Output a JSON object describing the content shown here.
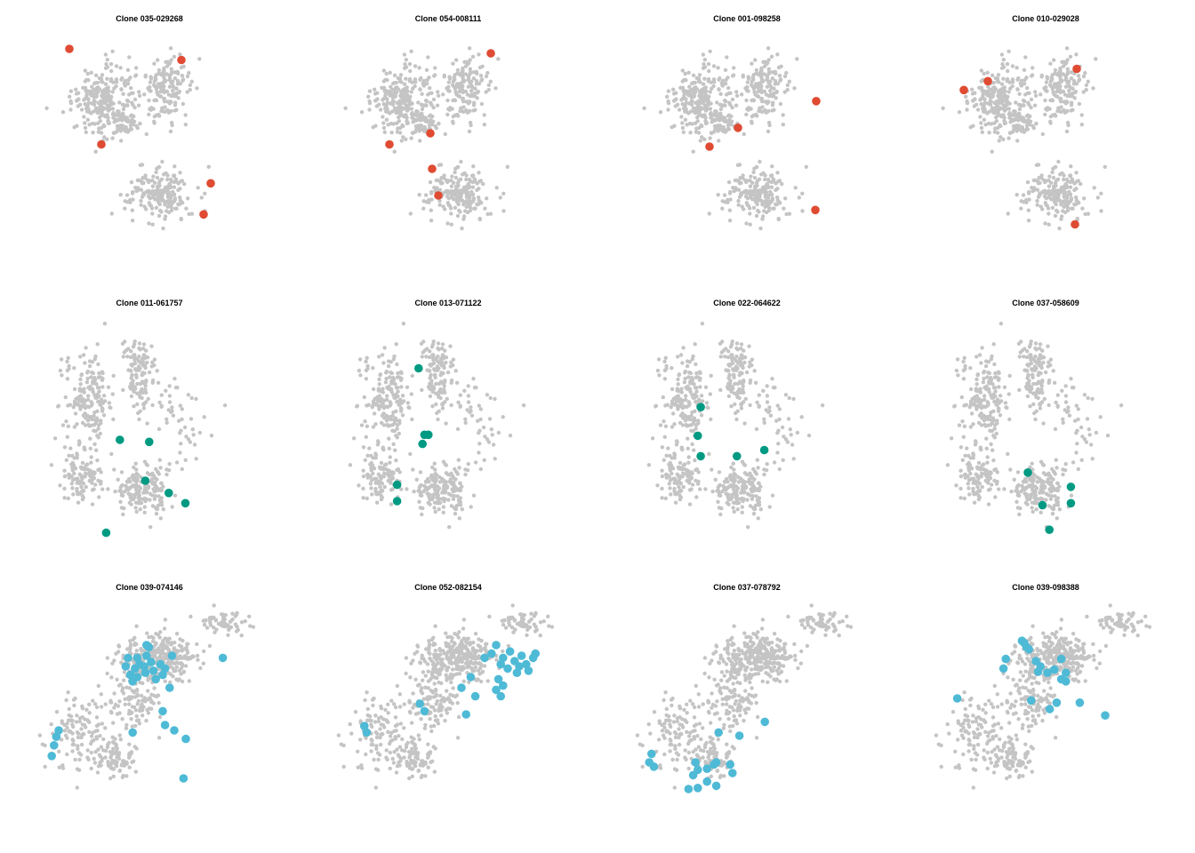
{
  "colors": {
    "background_points": "#c4c4c4",
    "red": "#e04b33",
    "green": "#009a82",
    "blue": "#4ebad6"
  },
  "chart_data": [
    {
      "type": "scatter",
      "title": "Clone 035-029268",
      "color": "#e04b33",
      "highlight": [
        [
          -0.82,
          -0.88
        ],
        [
          0.44,
          -0.78
        ],
        [
          -0.46,
          -0.02
        ],
        [
          0.77,
          0.33
        ],
        [
          0.69,
          0.61
        ]
      ]
    },
    {
      "type": "scatter",
      "title": "Clone 054-008111",
      "color": "#e04b33",
      "highlight": [
        [
          0.56,
          -0.84
        ],
        [
          -0.12,
          -0.12
        ],
        [
          -0.58,
          -0.02
        ],
        [
          -0.1,
          0.2
        ],
        [
          -0.03,
          0.44
        ]
      ]
    },
    {
      "type": "scatter",
      "title": "Clone 001-098258",
      "color": "#e04b33",
      "highlight": [
        [
          0.86,
          -0.41
        ],
        [
          -0.02,
          -0.17
        ],
        [
          -0.34,
          0.0
        ],
        [
          0.85,
          0.57
        ]
      ]
    },
    {
      "type": "scatter",
      "title": "Clone 010-029028",
      "color": "#e04b33",
      "highlight": [
        [
          -0.84,
          -0.51
        ],
        [
          -0.57,
          -0.59
        ],
        [
          0.43,
          -0.7
        ],
        [
          0.41,
          0.7
        ]
      ]
    },
    {
      "type": "scatter",
      "title": "Clone 011-061757",
      "color": "#009a82",
      "highlight": [
        [
          -0.32,
          0.0
        ],
        [
          -0.02,
          0.02
        ],
        [
          -0.06,
          0.4
        ],
        [
          0.18,
          0.52
        ],
        [
          0.35,
          0.62
        ],
        [
          -0.46,
          0.91
        ]
      ]
    },
    {
      "type": "scatter",
      "title": "Clone 013-071122",
      "color": "#009a82",
      "highlight": [
        [
          -0.32,
          -0.7
        ],
        [
          -0.26,
          -0.05
        ],
        [
          -0.22,
          -0.05
        ],
        [
          -0.28,
          0.04
        ],
        [
          -0.54,
          0.44
        ],
        [
          -0.54,
          0.6
        ]
      ]
    },
    {
      "type": "scatter",
      "title": "Clone 022-064622",
      "color": "#009a82",
      "highlight": [
        [
          -0.49,
          -0.32
        ],
        [
          -0.52,
          -0.04
        ],
        [
          -0.49,
          0.16
        ],
        [
          -0.12,
          0.16
        ],
        [
          0.16,
          0.1
        ]
      ]
    },
    {
      "type": "scatter",
      "title": "Clone 037-058609",
      "color": "#009a82",
      "highlight": [
        [
          -0.2,
          0.32
        ],
        [
          0.24,
          0.46
        ],
        [
          0.24,
          0.62
        ],
        [
          -0.05,
          0.64
        ],
        [
          0.02,
          0.88
        ]
      ]
    },
    {
      "type": "scatter",
      "title": "Clone 039-074146",
      "color": "#4ebad6",
      "highlight": [
        [
          -0.04,
          -0.7
        ],
        [
          -0.02,
          -0.68
        ],
        [
          -0.04,
          -0.6
        ],
        [
          -0.12,
          -0.58
        ],
        [
          -0.1,
          -0.52
        ],
        [
          -0.06,
          -0.5
        ],
        [
          0.0,
          -0.54
        ],
        [
          -0.14,
          -0.48
        ],
        [
          -0.18,
          -0.42
        ],
        [
          -0.12,
          -0.4
        ],
        [
          -0.05,
          -0.44
        ],
        [
          0.02,
          -0.46
        ],
        [
          0.08,
          -0.52
        ],
        [
          0.12,
          -0.48
        ],
        [
          0.1,
          -0.42
        ],
        [
          0.04,
          -0.38
        ],
        [
          -0.16,
          -0.36
        ],
        [
          -0.22,
          -0.5
        ],
        [
          -0.2,
          -0.58
        ],
        [
          0.18,
          -0.6
        ],
        [
          0.62,
          -0.58
        ],
        [
          0.16,
          -0.3
        ],
        [
          0.1,
          -0.08
        ],
        [
          0.12,
          0.05
        ],
        [
          0.2,
          0.1
        ],
        [
          0.3,
          0.18
        ],
        [
          -0.16,
          0.12
        ],
        [
          -0.82,
          0.16
        ],
        [
          -0.84,
          0.24
        ],
        [
          -0.86,
          0.34
        ],
        [
          -0.8,
          0.1
        ],
        [
          0.28,
          0.55
        ]
      ]
    },
    {
      "type": "scatter",
      "title": "Clone 052-082154",
      "color": "#4ebad6",
      "highlight": [
        [
          0.4,
          -0.7
        ],
        [
          0.52,
          -0.64
        ],
        [
          0.46,
          -0.58
        ],
        [
          0.56,
          -0.55
        ],
        [
          0.6,
          -0.5
        ],
        [
          0.66,
          -0.52
        ],
        [
          0.72,
          -0.58
        ],
        [
          0.74,
          -0.62
        ],
        [
          0.68,
          -0.46
        ],
        [
          0.58,
          -0.44
        ],
        [
          0.5,
          -0.48
        ],
        [
          0.44,
          -0.52
        ],
        [
          0.62,
          -0.6
        ],
        [
          0.36,
          -0.62
        ],
        [
          0.3,
          -0.58
        ],
        [
          0.42,
          -0.38
        ],
        [
          0.46,
          -0.32
        ],
        [
          0.4,
          -0.28
        ],
        [
          0.44,
          -0.22
        ],
        [
          0.18,
          -0.4
        ],
        [
          0.1,
          -0.3
        ],
        [
          0.22,
          -0.22
        ],
        [
          -0.26,
          -0.15
        ],
        [
          -0.22,
          -0.08
        ],
        [
          -0.74,
          0.06
        ],
        [
          -0.72,
          0.12
        ],
        [
          0.14,
          -0.05
        ]
      ]
    },
    {
      "type": "scatter",
      "title": "Clone 037-078792",
      "color": "#4ebad6",
      "highlight": [
        [
          0.14,
          0.02
        ],
        [
          -0.26,
          0.12
        ],
        [
          -0.08,
          0.15
        ],
        [
          -0.84,
          0.32
        ],
        [
          -0.86,
          0.4
        ],
        [
          -0.82,
          0.44
        ],
        [
          -0.46,
          0.4
        ],
        [
          -0.28,
          0.4
        ],
        [
          -0.3,
          0.42
        ],
        [
          -0.44,
          0.47
        ],
        [
          -0.48,
          0.52
        ],
        [
          -0.36,
          0.46
        ],
        [
          -0.16,
          0.42
        ],
        [
          -0.14,
          0.5
        ],
        [
          -0.36,
          0.58
        ],
        [
          -0.44,
          0.64
        ],
        [
          -0.28,
          0.62
        ],
        [
          -0.52,
          0.65
        ]
      ]
    },
    {
      "type": "scatter",
      "title": "Clone 039-098388",
      "color": "#4ebad6",
      "highlight": [
        [
          -0.22,
          -0.74
        ],
        [
          -0.2,
          -0.72
        ],
        [
          -0.18,
          -0.68
        ],
        [
          -0.16,
          -0.66
        ],
        [
          -0.36,
          -0.57
        ],
        [
          -0.1,
          -0.55
        ],
        [
          0.12,
          -0.57
        ],
        [
          -0.38,
          -0.48
        ],
        [
          -0.08,
          -0.45
        ],
        [
          0.0,
          -0.44
        ],
        [
          0.16,
          -0.44
        ],
        [
          0.06,
          -0.47
        ],
        [
          -0.06,
          -0.5
        ],
        [
          0.12,
          -0.38
        ],
        [
          0.16,
          -0.36
        ],
        [
          -0.78,
          -0.2
        ],
        [
          -0.14,
          -0.18
        ],
        [
          0.02,
          -0.1
        ],
        [
          0.08,
          -0.16
        ],
        [
          0.28,
          -0.16
        ],
        [
          0.5,
          -0.04
        ]
      ]
    }
  ]
}
